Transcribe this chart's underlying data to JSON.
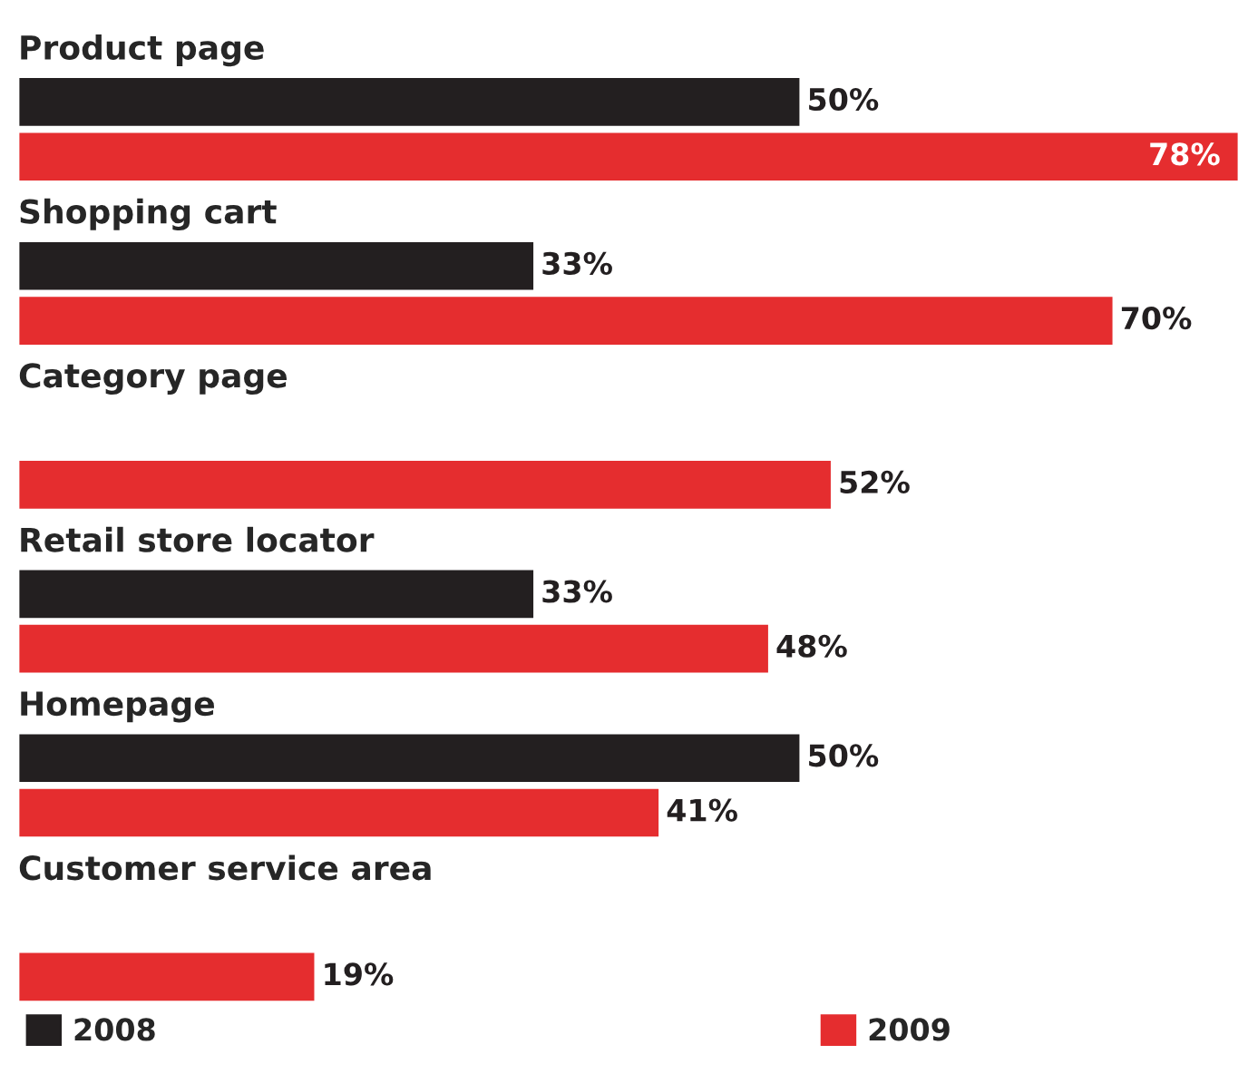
{
  "chart_data": {
    "type": "bar",
    "orientation": "horizontal",
    "categories": [
      "Product page",
      "Shopping cart",
      "Category page",
      "Retail store locator",
      "Homepage",
      "Customer service area"
    ],
    "series": [
      {
        "name": "2008",
        "color": "#231f20",
        "values": [
          50,
          33,
          null,
          33,
          50,
          null
        ],
        "value_labels": [
          "50%",
          "33%",
          null,
          "33%",
          "50%",
          null
        ]
      },
      {
        "name": "2009",
        "color": "#e52d2f",
        "values": [
          78,
          70,
          52,
          48,
          41,
          19
        ],
        "value_labels": [
          "78%",
          "70%",
          "52%",
          "48%",
          "41%",
          "19%"
        ]
      }
    ],
    "legend": "bottom"
  }
}
